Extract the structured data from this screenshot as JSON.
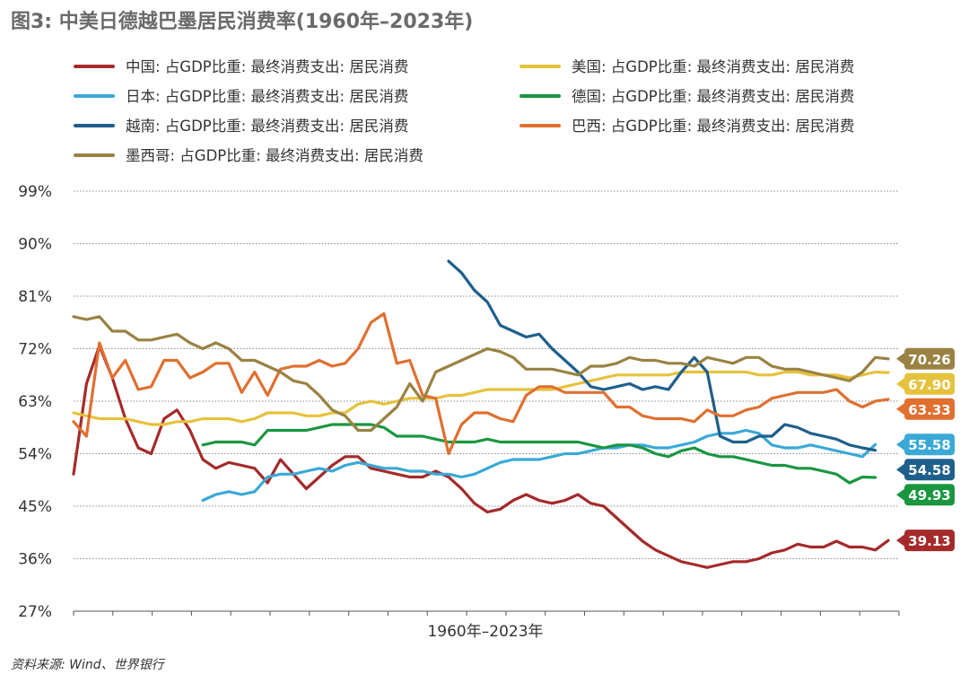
{
  "figure": {
    "title": "图3: 中美日德越巴墨居民消费率(1960年–2023年)",
    "source": "资料来源: Wind、世界银行"
  },
  "chart_data": {
    "type": "line",
    "xlabel": "1960年–2023年",
    "ylabel": "",
    "xlim": [
      1960,
      2023
    ],
    "ylim": [
      27,
      99
    ],
    "yticks": [
      "99%",
      "90%",
      "81%",
      "72%",
      "63%",
      "54%",
      "45%",
      "36%",
      "27%"
    ],
    "grid": true,
    "legend_position": "top",
    "series": [
      {
        "name": "中国: 占GDP比重: 最终消费支出: 居民消费",
        "color": "#a52a2a",
        "end_label": "39.13",
        "x0": 1960,
        "values": [
          50.5,
          66.0,
          72.5,
          67.0,
          60.0,
          55.0,
          54.0,
          60.0,
          61.5,
          58.0,
          53.0,
          51.5,
          52.5,
          52.0,
          51.5,
          49.0,
          53.0,
          50.5,
          48.0,
          50.0,
          52.0,
          53.5,
          53.5,
          51.5,
          51.0,
          50.5,
          50.0,
          50.0,
          51.0,
          50.0,
          48.0,
          45.5,
          44.0,
          44.5,
          46.0,
          47.0,
          46.0,
          45.5,
          46.0,
          47.0,
          45.5,
          45.0,
          43.0,
          41.0,
          39.0,
          37.5,
          36.5,
          35.5,
          35.0,
          34.5,
          35.0,
          35.5,
          35.5,
          36.0,
          37.0,
          37.5,
          38.5,
          38.0,
          38.0,
          39.0,
          38.0,
          38.0,
          37.5,
          39.13
        ]
      },
      {
        "name": "美国: 占GDP比重: 最终消费支出: 居民消费",
        "color": "#e6c23c",
        "end_label": "67.90",
        "x0": 1960,
        "values": [
          61.0,
          60.5,
          60.0,
          60.0,
          60.0,
          59.5,
          59.0,
          59.0,
          59.5,
          59.5,
          60.0,
          60.0,
          60.0,
          59.5,
          60.0,
          61.0,
          61.0,
          61.0,
          60.5,
          60.5,
          61.0,
          61.0,
          62.5,
          63.0,
          62.5,
          63.0,
          63.5,
          63.5,
          63.5,
          64.0,
          64.0,
          64.5,
          65.0,
          65.0,
          65.0,
          65.0,
          65.0,
          65.0,
          65.5,
          66.0,
          66.5,
          67.0,
          67.5,
          67.5,
          67.5,
          67.5,
          67.5,
          68.0,
          68.0,
          68.0,
          68.0,
          68.0,
          68.0,
          67.5,
          67.5,
          68.0,
          68.0,
          67.5,
          67.5,
          67.5,
          67.0,
          67.5,
          68.0,
          67.9
        ]
      },
      {
        "name": "日本: 占GDP比重: 最终消费支出: 居民消费",
        "color": "#3aa9d6",
        "end_label": "55.58",
        "x0": 1970,
        "values": [
          46.0,
          47.0,
          47.5,
          47.0,
          47.5,
          50.0,
          50.5,
          50.5,
          51.0,
          51.5,
          51.0,
          52.0,
          52.5,
          52.0,
          51.5,
          51.5,
          51.0,
          51.0,
          50.5,
          50.5,
          50.0,
          50.5,
          51.5,
          52.5,
          53.0,
          53.0,
          53.0,
          53.5,
          54.0,
          54.0,
          54.5,
          55.0,
          55.0,
          55.5,
          55.5,
          55.0,
          55.0,
          55.5,
          56.0,
          57.0,
          57.5,
          57.5,
          58.0,
          57.5,
          55.5,
          55.0,
          55.0,
          55.5,
          55.0,
          54.5,
          54.0,
          53.5,
          55.58
        ]
      },
      {
        "name": "德国: 占GDP比重: 最终消费支出: 居民消费",
        "color": "#1a9641",
        "end_label": "49.93",
        "x0": 1970,
        "values": [
          55.5,
          56.0,
          56.0,
          56.0,
          55.5,
          58.0,
          58.0,
          58.0,
          58.0,
          58.5,
          59.0,
          59.0,
          59.0,
          59.0,
          58.5,
          57.0,
          57.0,
          57.0,
          56.5,
          56.0,
          56.0,
          56.0,
          56.5,
          56.0,
          56.0,
          56.0,
          56.0,
          56.0,
          56.0,
          56.0,
          55.5,
          55.0,
          55.5,
          55.5,
          55.0,
          54.0,
          53.5,
          54.5,
          55.0,
          54.0,
          53.5,
          53.5,
          53.0,
          52.5,
          52.0,
          52.0,
          51.5,
          51.5,
          51.0,
          50.5,
          49.0,
          50.0,
          49.93
        ]
      },
      {
        "name": "越南: 占GDP比重: 最终消费支出: 居民消费",
        "color": "#1e5f8c",
        "end_label": "54.58",
        "x0": 1989,
        "values": [
          87.0,
          85.0,
          82.0,
          80.0,
          76.0,
          75.0,
          74.0,
          74.5,
          72.0,
          70.0,
          68.0,
          65.5,
          65.0,
          65.5,
          66.0,
          65.0,
          65.5,
          65.0,
          68.0,
          70.5,
          68.0,
          57.0,
          56.0,
          56.0,
          57.0,
          57.0,
          59.0,
          58.5,
          57.5,
          57.0,
          56.5,
          55.5,
          55.0,
          54.58
        ]
      },
      {
        "name": "巴西: 占GDP比重: 最终消费支出: 居民消费",
        "color": "#e07030",
        "end_label": "63.33",
        "x0": 1960,
        "values": [
          59.5,
          57.0,
          73.0,
          67.0,
          70.0,
          65.0,
          65.5,
          70.0,
          70.0,
          67.0,
          68.0,
          69.5,
          69.5,
          64.5,
          68.0,
          64.0,
          68.5,
          69.0,
          69.0,
          70.0,
          69.0,
          69.5,
          72.0,
          76.5,
          78.0,
          69.5,
          70.0,
          64.0,
          63.5,
          54.0,
          59.0,
          61.0,
          61.0,
          60.0,
          59.5,
          64.0,
          65.5,
          65.5,
          64.5,
          64.5,
          64.5,
          64.5,
          62.0,
          62.0,
          60.5,
          60.0,
          60.0,
          60.0,
          59.5,
          61.5,
          60.5,
          60.5,
          61.5,
          62.0,
          63.5,
          64.0,
          64.5,
          64.5,
          64.5,
          65.0,
          63.0,
          62.0,
          63.0,
          63.33
        ]
      },
      {
        "name": "墨西哥: 占GDP比重: 最终消费支出: 居民消费",
        "color": "#9a8243",
        "end_label": "70.26",
        "x0": 1960,
        "values": [
          77.5,
          77.0,
          77.5,
          75.0,
          75.0,
          73.5,
          73.5,
          74.0,
          74.5,
          73.0,
          72.0,
          73.0,
          72.0,
          70.0,
          70.0,
          69.0,
          68.0,
          66.5,
          66.0,
          64.0,
          61.5,
          60.5,
          58.0,
          58.0,
          60.0,
          62.0,
          66.0,
          63.0,
          68.0,
          69.0,
          70.0,
          71.0,
          72.0,
          71.5,
          70.5,
          68.5,
          68.5,
          68.5,
          68.0,
          67.5,
          69.0,
          69.0,
          69.5,
          70.5,
          70.0,
          70.0,
          69.5,
          69.5,
          69.0,
          70.5,
          70.0,
          69.5,
          70.5,
          70.5,
          69.0,
          68.5,
          68.5,
          68.0,
          67.5,
          67.0,
          66.5,
          68.0,
          70.5,
          70.26
        ]
      }
    ]
  }
}
